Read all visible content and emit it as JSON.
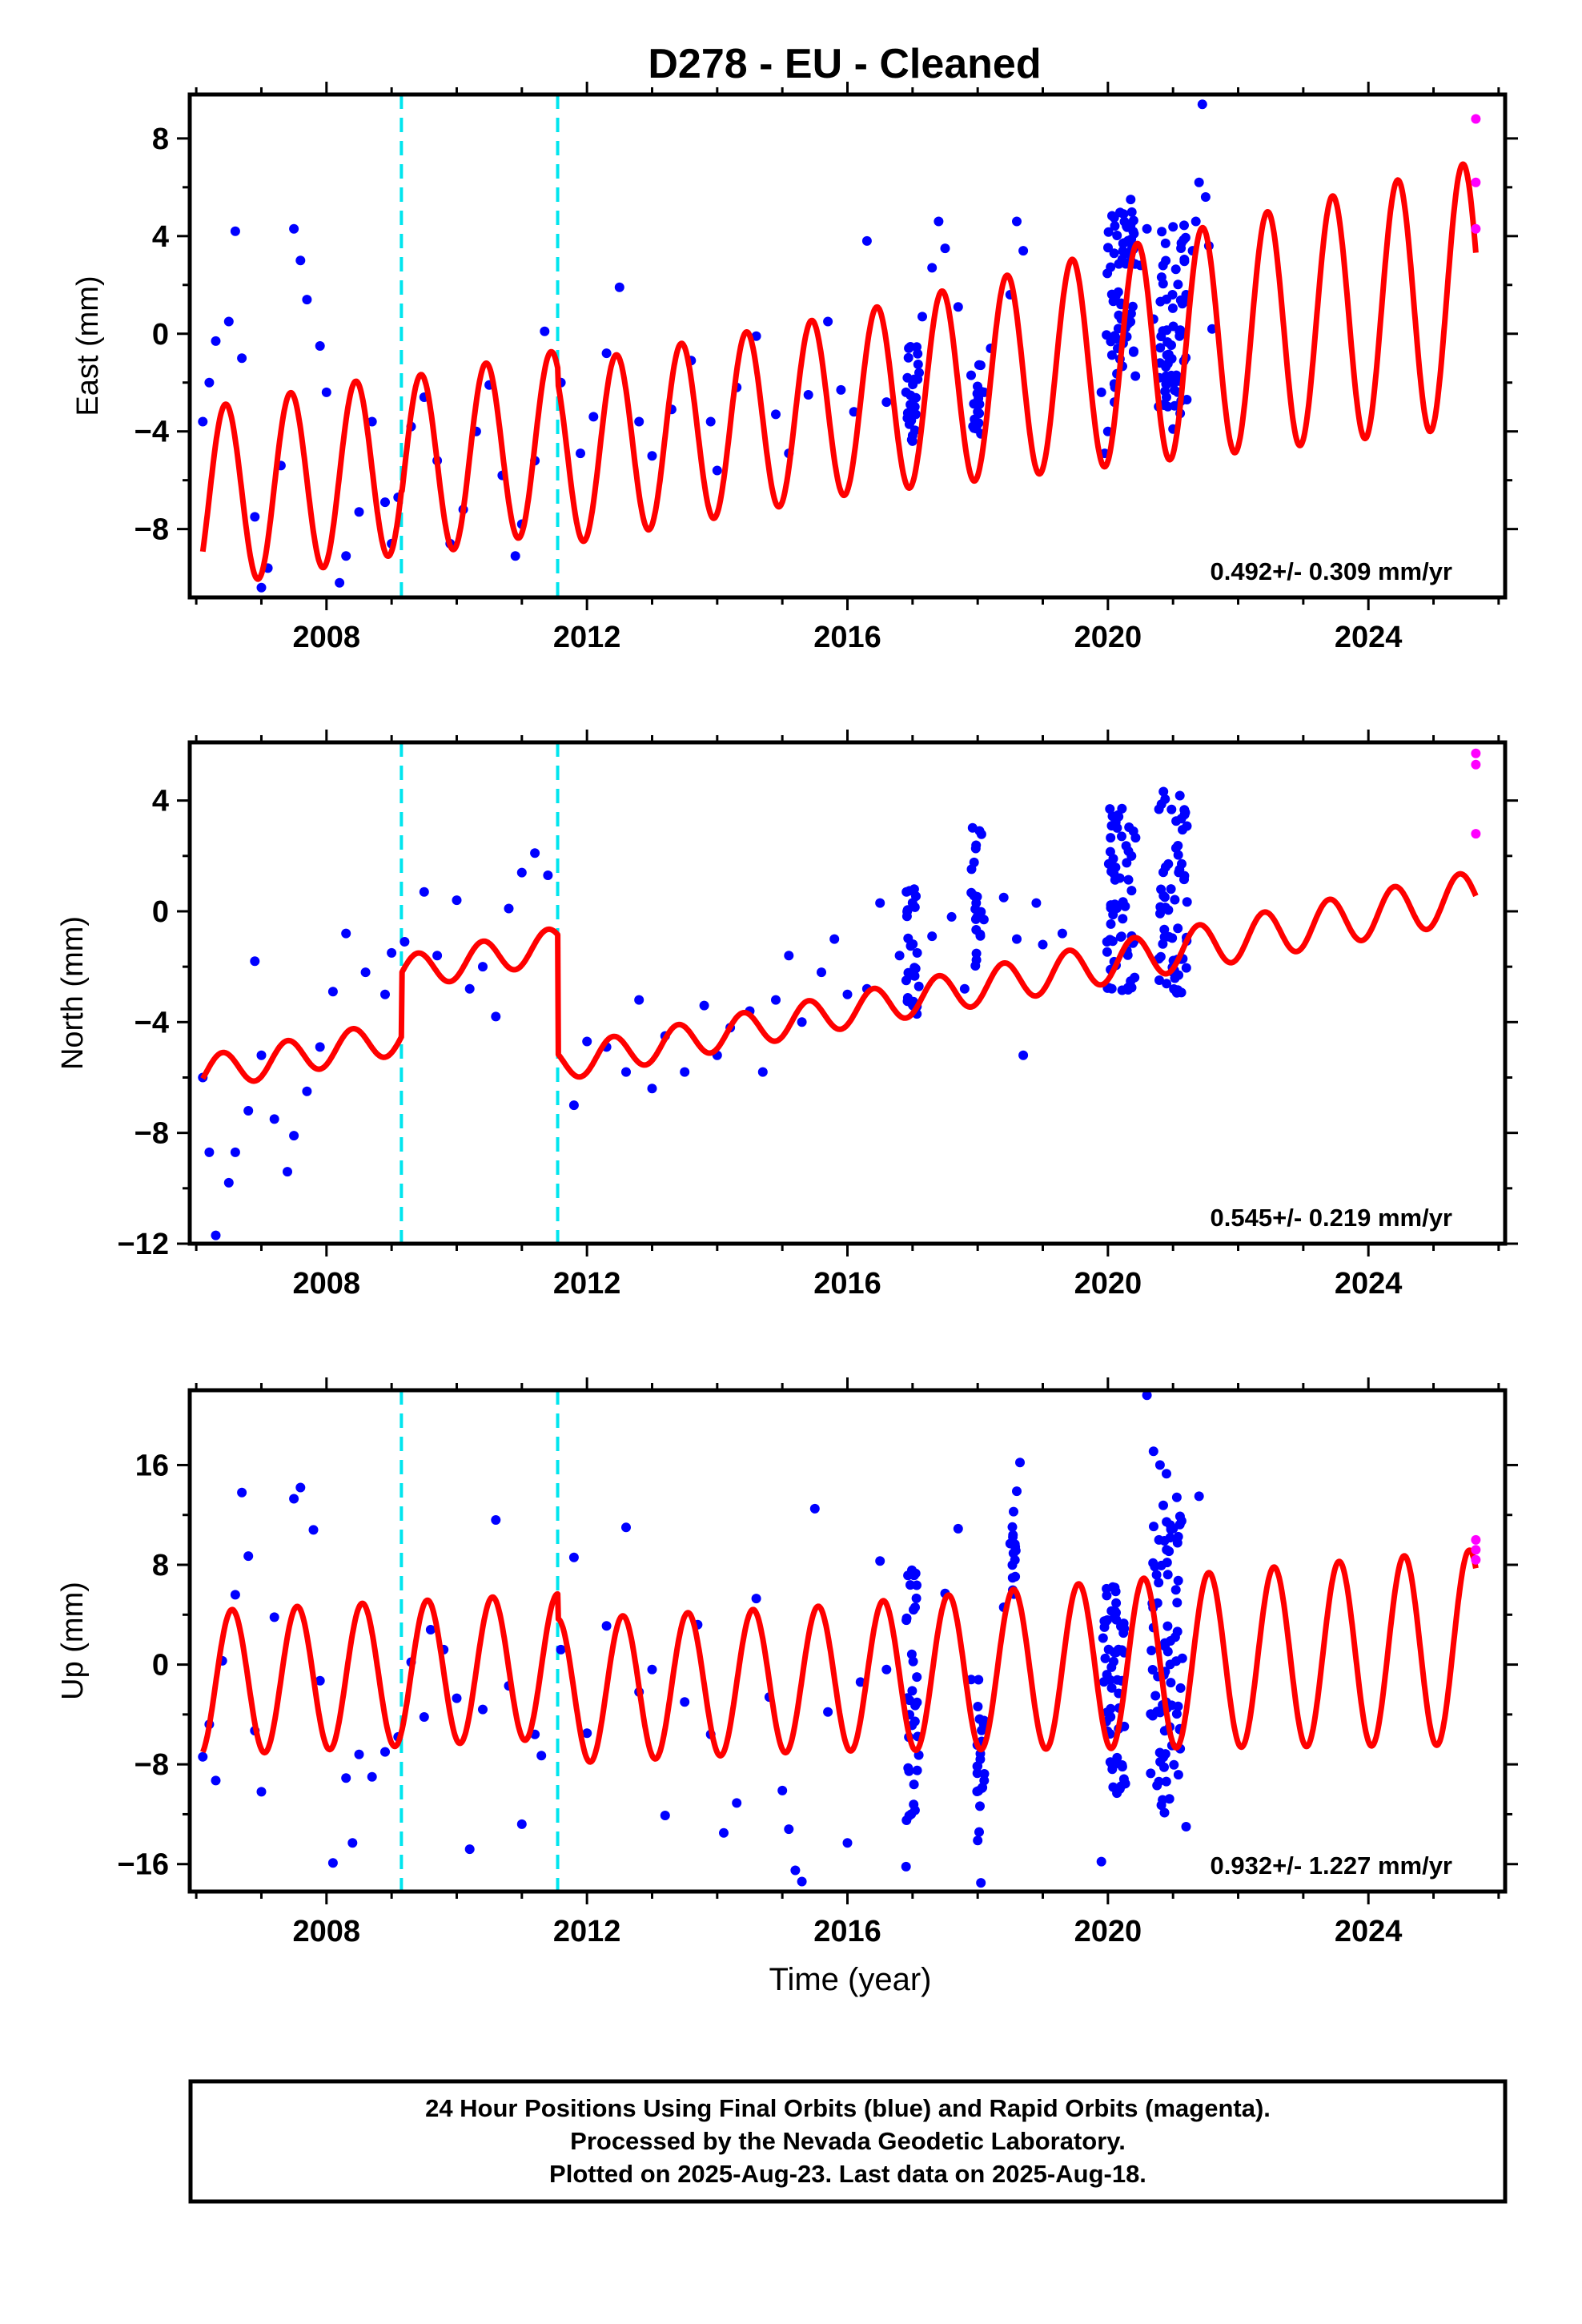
{
  "title": "D278  - EU - Cleaned",
  "x_axis_label": "Time (year)",
  "footer": {
    "line1": "24 Hour Positions Using Final Orbits (blue) and Rapid Orbits (magenta).",
    "line2": "Processed by the Nevada Geodetic Laboratory.",
    "line3": "Plotted on 2025-Aug-23. Last data on 2025-Aug-18."
  },
  "colors": {
    "final_orbits": "#0000ff",
    "rapid_orbits": "#ff00ff",
    "model": "#ff0000",
    "offsets": "#00e5ee"
  },
  "chart_data": [
    {
      "type": "scatter",
      "panel": "east",
      "ylabel": "East (mm)",
      "xlim": [
        2005.9,
        2026.1
      ],
      "ylim": [
        -10.8,
        9.8
      ],
      "xticks": [
        2008,
        2012,
        2016,
        2020,
        2024
      ],
      "yticks": [
        -8,
        -4,
        0,
        4,
        8
      ],
      "rate_text": "0.492+/- 0.309 mm/yr",
      "offset_lines": [
        2009.15,
        2011.55
      ],
      "model": {
        "a": -6.75,
        "rate": 0.47,
        "amp": 3.7,
        "peak_phase": 0.45,
        "breaks": [
          {
            "year": 2009.15,
            "size": -0.2
          },
          {
            "year": 2011.55,
            "size": -0.6
          }
        ],
        "amp_growth": {
          "start": 2016.0,
          "rate": 0.18
        },
        "x_range": [
          2006.1,
          2025.65
        ]
      },
      "scatter_final": [
        [
          2006.1,
          -3.6
        ],
        [
          2006.2,
          -2.0
        ],
        [
          2006.3,
          -0.3
        ],
        [
          2006.5,
          0.5
        ],
        [
          2006.6,
          4.2
        ],
        [
          2006.7,
          -1.0
        ],
        [
          2006.9,
          -7.5
        ],
        [
          2007.0,
          -10.4
        ],
        [
          2007.1,
          -9.6
        ],
        [
          2007.3,
          -5.4
        ],
        [
          2007.5,
          4.3
        ],
        [
          2007.6,
          3.0
        ],
        [
          2007.7,
          1.4
        ],
        [
          2007.9,
          -0.5
        ],
        [
          2008.0,
          -2.4
        ],
        [
          2008.2,
          -10.2
        ],
        [
          2008.3,
          -9.1
        ],
        [
          2008.5,
          -7.3
        ],
        [
          2008.7,
          -3.6
        ],
        [
          2008.9,
          -6.9
        ],
        [
          2009.0,
          -8.6
        ],
        [
          2009.1,
          -6.7
        ],
        [
          2009.3,
          -3.8
        ],
        [
          2009.5,
          -2.6
        ],
        [
          2009.7,
          -5.2
        ],
        [
          2009.9,
          -8.6
        ],
        [
          2010.1,
          -7.2
        ],
        [
          2010.3,
          -4.0
        ],
        [
          2010.5,
          -2.1
        ],
        [
          2010.7,
          -5.8
        ],
        [
          2010.9,
          -9.1
        ],
        [
          2011.0,
          -7.8
        ],
        [
          2011.2,
          -5.2
        ],
        [
          2011.35,
          0.1
        ],
        [
          2011.6,
          -2.0
        ],
        [
          2011.9,
          -4.9
        ],
        [
          2012.1,
          -3.4
        ],
        [
          2012.3,
          -0.8
        ],
        [
          2012.5,
          1.9
        ],
        [
          2012.8,
          -3.6
        ],
        [
          2013.0,
          -5.0
        ],
        [
          2013.3,
          -3.1
        ],
        [
          2013.6,
          -1.1
        ],
        [
          2013.9,
          -3.6
        ],
        [
          2014.0,
          -5.6
        ],
        [
          2014.3,
          -2.2
        ],
        [
          2014.6,
          -0.1
        ],
        [
          2014.9,
          -3.3
        ],
        [
          2015.1,
          -4.9
        ],
        [
          2015.4,
          -2.5
        ],
        [
          2015.7,
          0.5
        ],
        [
          2015.9,
          -2.3
        ],
        [
          2016.1,
          -3.2
        ],
        [
          2016.3,
          3.8
        ],
        [
          2016.6,
          -2.8
        ],
        [
          2016.9,
          -2.4
        ],
        [
          2017.0,
          -4.4
        ],
        [
          2017.05,
          -3.3
        ],
        [
          2017.1,
          -1.6
        ],
        [
          2017.15,
          0.7
        ],
        [
          2017.3,
          2.7
        ],
        [
          2017.4,
          4.6
        ],
        [
          2017.5,
          3.5
        ],
        [
          2017.7,
          1.1
        ],
        [
          2017.9,
          -1.7
        ],
        [
          2018.0,
          -3.2
        ],
        [
          2018.05,
          -4.1
        ],
        [
          2018.1,
          -2.4
        ],
        [
          2018.2,
          -0.6
        ],
        [
          2018.5,
          1.6
        ],
        [
          2018.6,
          4.6
        ],
        [
          2018.7,
          3.4
        ],
        [
          2019.9,
          -2.4
        ],
        [
          2019.95,
          -4.9
        ],
        [
          2020.0,
          -4.0
        ],
        [
          2020.1,
          -2.8
        ],
        [
          2020.15,
          -0.6
        ],
        [
          2020.2,
          1.2
        ],
        [
          2020.3,
          3.3
        ],
        [
          2020.35,
          5.5
        ],
        [
          2020.4,
          4.1
        ],
        [
          2020.5,
          2.8
        ],
        [
          2020.6,
          4.3
        ],
        [
          2020.7,
          0.6
        ],
        [
          2020.8,
          -1.2
        ],
        [
          2020.9,
          -2.6
        ],
        [
          2021.0,
          -3.9
        ],
        [
          2021.05,
          -1.7
        ],
        [
          2021.1,
          0.1
        ],
        [
          2021.2,
          1.6
        ],
        [
          2021.3,
          3.4
        ],
        [
          2021.35,
          4.6
        ],
        [
          2021.4,
          6.2
        ],
        [
          2021.45,
          9.4
        ],
        [
          2021.5,
          5.6
        ],
        [
          2021.55,
          3.6
        ],
        [
          2021.6,
          0.2
        ]
      ],
      "scatter_clusters": [
        {
          "center": 2017.0,
          "width": 0.18,
          "min": -4.4,
          "max": -0.3,
          "count": 22
        },
        {
          "center": 2018.0,
          "width": 0.15,
          "min": -4.2,
          "max": -1.2,
          "count": 16
        },
        {
          "center": 2020.2,
          "width": 0.45,
          "min": -2.2,
          "max": 5.2,
          "count": 60
        },
        {
          "center": 2021.0,
          "width": 0.45,
          "min": -3.4,
          "max": 4.5,
          "count": 60
        }
      ],
      "scatter_rapid": [
        [
          2025.65,
          8.8
        ],
        [
          2025.65,
          6.2
        ],
        [
          2025.65,
          4.3
        ]
      ]
    },
    {
      "type": "scatter",
      "panel": "north",
      "ylabel": "North (mm)",
      "xlim": [
        2005.9,
        2026.1
      ],
      "ylim": [
        -12.0,
        6.1
      ],
      "xticks": [
        2008,
        2012,
        2016,
        2020,
        2024
      ],
      "yticks": [
        -12,
        -8,
        -4,
        0,
        4
      ],
      "rate_text": "0.545+/- 0.219 mm/yr",
      "offset_lines": [
        2009.15,
        2011.55
      ],
      "model": {
        "a": -5.85,
        "rate": 0.43,
        "amp": 0.62,
        "peak_phase": 0.4,
        "breaks": [
          {
            "year": 2009.15,
            "size": 2.3
          },
          {
            "year": 2011.55,
            "size": -4.3
          }
        ],
        "amp_growth": {
          "start": 2016.0,
          "rate": 0.03
        },
        "x_range": [
          2006.1,
          2025.65
        ]
      },
      "scatter_final": [
        [
          2006.1,
          -6.0
        ],
        [
          2006.2,
          -8.7
        ],
        [
          2006.3,
          -11.7
        ],
        [
          2006.5,
          -9.8
        ],
        [
          2006.6,
          -8.7
        ],
        [
          2006.8,
          -7.2
        ],
        [
          2006.9,
          -1.8
        ],
        [
          2007.0,
          -5.2
        ],
        [
          2007.2,
          -7.5
        ],
        [
          2007.4,
          -9.4
        ],
        [
          2007.5,
          -8.1
        ],
        [
          2007.7,
          -6.5
        ],
        [
          2007.9,
          -4.9
        ],
        [
          2008.1,
          -2.9
        ],
        [
          2008.3,
          -0.8
        ],
        [
          2008.6,
          -2.2
        ],
        [
          2008.9,
          -3.0
        ],
        [
          2009.0,
          -1.5
        ],
        [
          2009.2,
          -1.1
        ],
        [
          2009.5,
          0.7
        ],
        [
          2009.7,
          -1.6
        ],
        [
          2010.0,
          0.4
        ],
        [
          2010.2,
          -2.8
        ],
        [
          2010.4,
          -2.0
        ],
        [
          2010.6,
          -3.8
        ],
        [
          2010.8,
          0.1
        ],
        [
          2011.0,
          1.4
        ],
        [
          2011.2,
          2.1
        ],
        [
          2011.4,
          1.3
        ],
        [
          2011.8,
          -7.0
        ],
        [
          2012.0,
          -4.7
        ],
        [
          2012.3,
          -4.9
        ],
        [
          2012.6,
          -5.8
        ],
        [
          2012.8,
          -3.2
        ],
        [
          2013.0,
          -6.4
        ],
        [
          2013.2,
          -4.5
        ],
        [
          2013.5,
          -5.8
        ],
        [
          2013.8,
          -3.4
        ],
        [
          2014.0,
          -5.2
        ],
        [
          2014.2,
          -4.2
        ],
        [
          2014.5,
          -3.6
        ],
        [
          2014.7,
          -5.8
        ],
        [
          2014.9,
          -3.2
        ],
        [
          2015.1,
          -1.6
        ],
        [
          2015.3,
          -4.0
        ],
        [
          2015.6,
          -2.2
        ],
        [
          2015.8,
          -1.0
        ],
        [
          2016.0,
          -3.0
        ],
        [
          2016.3,
          -2.8
        ],
        [
          2016.5,
          0.3
        ],
        [
          2016.8,
          -1.6
        ],
        [
          2017.3,
          -0.9
        ],
        [
          2017.6,
          -0.2
        ],
        [
          2017.8,
          -2.8
        ],
        [
          2018.4,
          0.5
        ],
        [
          2018.6,
          -1.0
        ],
        [
          2018.7,
          -5.2
        ],
        [
          2018.9,
          0.3
        ],
        [
          2019.0,
          -1.2
        ],
        [
          2019.3,
          -0.8
        ]
      ],
      "scatter_clusters": [
        {
          "center": 2017.0,
          "width": 0.2,
          "min": -4.1,
          "max": 0.9,
          "count": 28
        },
        {
          "center": 2018.0,
          "width": 0.2,
          "min": -2.0,
          "max": 3.2,
          "count": 22
        },
        {
          "center": 2020.2,
          "width": 0.45,
          "min": -3.0,
          "max": 3.8,
          "count": 60
        },
        {
          "center": 2021.0,
          "width": 0.45,
          "min": -3.0,
          "max": 4.5,
          "count": 60
        }
      ],
      "scatter_rapid": [
        [
          2025.65,
          5.7
        ],
        [
          2025.65,
          5.3
        ],
        [
          2025.65,
          2.8
        ]
      ]
    },
    {
      "type": "scatter",
      "panel": "up",
      "ylabel": "Up (mm)",
      "xlim": [
        2005.9,
        2026.1
      ],
      "ylim": [
        -18.2,
        22.0
      ],
      "xticks": [
        2008,
        2012,
        2016,
        2020,
        2024
      ],
      "yticks": [
        -16,
        -8,
        0,
        8,
        16
      ],
      "rate_text": "0.932+/- 1.227 mm/yr",
      "offset_lines": [
        2009.15,
        2011.55
      ],
      "model": {
        "a": -1.5,
        "rate": 0.25,
        "amp": 5.8,
        "peak_phase": 0.55,
        "breaks": [
          {
            "year": 2011.55,
            "size": -2.0
          }
        ],
        "amp_growth": {
          "start": 2015.5,
          "rate": 0.2
        },
        "x_range": [
          2006.1,
          2025.65
        ]
      },
      "scatter_final": [
        [
          2006.1,
          -7.4
        ],
        [
          2006.2,
          -4.8
        ],
        [
          2006.3,
          -9.3
        ],
        [
          2006.4,
          0.3
        ],
        [
          2006.6,
          5.6
        ],
        [
          2006.7,
          13.8
        ],
        [
          2006.8,
          8.7
        ],
        [
          2006.9,
          -5.3
        ],
        [
          2007.0,
          -10.2
        ],
        [
          2007.2,
          3.8
        ],
        [
          2007.5,
          13.3
        ],
        [
          2007.6,
          14.2
        ],
        [
          2007.8,
          10.8
        ],
        [
          2007.9,
          -1.3
        ],
        [
          2008.1,
          -15.9
        ],
        [
          2008.3,
          -9.1
        ],
        [
          2008.4,
          -14.3
        ],
        [
          2008.5,
          -7.2
        ],
        [
          2008.7,
          -9.0
        ],
        [
          2008.9,
          -7.0
        ],
        [
          2009.1,
          -5.8
        ],
        [
          2009.3,
          0.2
        ],
        [
          2009.5,
          -4.2
        ],
        [
          2009.6,
          2.8
        ],
        [
          2009.8,
          1.2
        ],
        [
          2010.0,
          -2.7
        ],
        [
          2010.2,
          -14.8
        ],
        [
          2010.4,
          -3.6
        ],
        [
          2010.6,
          11.6
        ],
        [
          2010.8,
          -1.7
        ],
        [
          2011.0,
          -12.8
        ],
        [
          2011.2,
          -5.6
        ],
        [
          2011.3,
          -7.3
        ],
        [
          2011.6,
          1.2
        ],
        [
          2011.8,
          8.6
        ],
        [
          2012.0,
          -5.5
        ],
        [
          2012.3,
          3.1
        ],
        [
          2012.6,
          11.0
        ],
        [
          2012.8,
          -2.2
        ],
        [
          2013.0,
          -0.4
        ],
        [
          2013.2,
          -12.1
        ],
        [
          2013.5,
          -3.0
        ],
        [
          2013.7,
          3.2
        ],
        [
          2013.9,
          -5.6
        ],
        [
          2014.1,
          -13.5
        ],
        [
          2014.3,
          -11.1
        ],
        [
          2014.6,
          5.3
        ],
        [
          2014.8,
          -2.6
        ],
        [
          2015.0,
          -10.1
        ],
        [
          2015.1,
          -13.2
        ],
        [
          2015.2,
          -16.5
        ],
        [
          2015.3,
          -17.4
        ],
        [
          2015.5,
          12.5
        ],
        [
          2015.7,
          -3.8
        ],
        [
          2016.0,
          -14.3
        ],
        [
          2016.2,
          -1.4
        ],
        [
          2016.5,
          8.3
        ],
        [
          2016.6,
          -0.4
        ],
        [
          2016.9,
          -16.2
        ],
        [
          2017.5,
          5.7
        ],
        [
          2017.7,
          10.9
        ],
        [
          2017.9,
          -1.2
        ],
        [
          2018.0,
          -14.1
        ],
        [
          2018.05,
          -17.5
        ],
        [
          2018.1,
          -9.3
        ],
        [
          2018.4,
          4.6
        ],
        [
          2018.5,
          9.7
        ],
        [
          2018.6,
          13.9
        ],
        [
          2018.65,
          16.2
        ],
        [
          2019.9,
          -15.8
        ],
        [
          2020.6,
          21.6
        ],
        [
          2020.7,
          17.1
        ],
        [
          2020.8,
          16.0
        ],
        [
          2020.9,
          15.3
        ],
        [
          2021.2,
          -13.0
        ],
        [
          2021.4,
          13.5
        ]
      ],
      "scatter_clusters": [
        {
          "center": 2017.0,
          "width": 0.2,
          "min": -12.5,
          "max": 7.8,
          "count": 34
        },
        {
          "center": 2018.05,
          "width": 0.12,
          "min": -13.5,
          "max": 2.0,
          "count": 20
        },
        {
          "center": 2018.55,
          "width": 0.1,
          "min": 4.5,
          "max": 12.5,
          "count": 14
        },
        {
          "center": 2020.1,
          "width": 0.35,
          "min": -11.5,
          "max": 6.5,
          "count": 60
        },
        {
          "center": 2020.9,
          "width": 0.5,
          "min": -12.0,
          "max": 13.5,
          "count": 80
        }
      ],
      "scatter_rapid": [
        [
          2025.65,
          10.0
        ],
        [
          2025.65,
          9.2
        ],
        [
          2025.65,
          8.4
        ]
      ]
    }
  ]
}
